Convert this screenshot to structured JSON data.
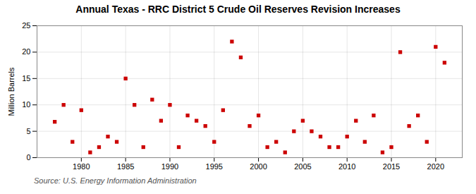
{
  "chart_data": {
    "type": "scatter",
    "title": "Annual Texas - RRC District 5 Crude Oil Reserves Revision Increases",
    "ylabel": "Million Barrels",
    "source": "Source: U.S. Energy Information Administration",
    "x": [
      1977,
      1978,
      1979,
      1980,
      1981,
      1982,
      1983,
      1984,
      1985,
      1986,
      1987,
      1988,
      1989,
      1990,
      1991,
      1992,
      1993,
      1994,
      1995,
      1996,
      1997,
      1998,
      1999,
      2000,
      2001,
      2002,
      2003,
      2004,
      2005,
      2006,
      2007,
      2008,
      2009,
      2010,
      2011,
      2012,
      2013,
      2014,
      2015,
      2016,
      2017,
      2018,
      2019,
      2020,
      2021
    ],
    "values": [
      6.8,
      10.0,
      3.0,
      9.0,
      1.0,
      2.0,
      4.0,
      3.0,
      15.0,
      10.0,
      2.0,
      11.0,
      7.0,
      10.0,
      2.0,
      8.0,
      7.0,
      6.0,
      3.0,
      9.0,
      22.0,
      19.0,
      6.0,
      8.0,
      2.0,
      3.0,
      1.0,
      5.0,
      7.0,
      5.0,
      4.0,
      2.0,
      2.0,
      4.0,
      7.0,
      3.0,
      8.0,
      1.0,
      2.0,
      20.0,
      6.0,
      8.0,
      3.0,
      21.0,
      18.0
    ],
    "color": "#cc0000",
    "marker": "square",
    "xlim": [
      1975,
      2023
    ],
    "xticks": [
      1980,
      1985,
      1990,
      1995,
      2000,
      2005,
      2010,
      2015,
      2020
    ],
    "ylim": [
      0,
      25
    ],
    "yticks": [
      0,
      5,
      10,
      15,
      20,
      25
    ],
    "grid": true
  }
}
